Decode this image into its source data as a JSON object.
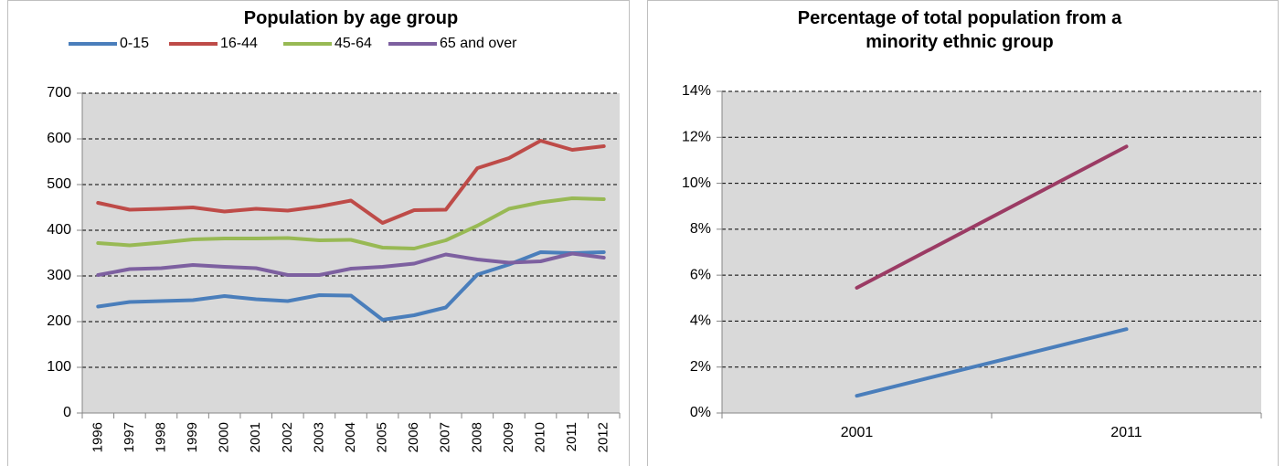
{
  "chart_data": [
    {
      "type": "line",
      "title": "Population by age group",
      "categories": [
        "1996",
        "1997",
        "1998",
        "1999",
        "2000",
        "2001",
        "2002",
        "2003",
        "2004",
        "2005",
        "2006",
        "2007",
        "2008",
        "2009",
        "2010",
        "2011",
        "2012"
      ],
      "series": [
        {
          "name": "0-15",
          "color": "#4a7ebb",
          "values": [
            233,
            243,
            245,
            247,
            256,
            249,
            245,
            258,
            257,
            204,
            214,
            231,
            303,
            325,
            352,
            350,
            352
          ]
        },
        {
          "name": "16-44",
          "color": "#be4b48",
          "values": [
            460,
            445,
            447,
            450,
            441,
            447,
            443,
            452,
            465,
            416,
            444,
            445,
            536,
            558,
            596,
            576,
            584
          ]
        },
        {
          "name": "45-64",
          "color": "#98b954",
          "values": [
            372,
            367,
            373,
            380,
            382,
            382,
            383,
            378,
            379,
            362,
            360,
            378,
            410,
            447,
            461,
            470,
            468
          ]
        },
        {
          "name": "65 and over",
          "color": "#7d60a0",
          "values": [
            302,
            315,
            317,
            324,
            320,
            317,
            302,
            302,
            316,
            320,
            327,
            347,
            336,
            329,
            332,
            349,
            340
          ]
        }
      ],
      "ylim": [
        0,
        700
      ],
      "yticks": [
        0,
        100,
        200,
        300,
        400,
        500,
        600,
        700
      ],
      "grid": true,
      "legend": "top"
    },
    {
      "type": "line",
      "title": "Percentage of total population from a minority ethnic group",
      "categories": [
        "2001",
        "2011"
      ],
      "series": [
        {
          "color": "#4a7ebb",
          "values": [
            0.75,
            3.65
          ]
        },
        {
          "color": "#9b3b64",
          "values": [
            5.45,
            11.6
          ]
        }
      ],
      "ylim": [
        0,
        14
      ],
      "yticks": [
        {
          "value": 0,
          "label": "0%"
        },
        {
          "value": 2,
          "label": "2%"
        },
        {
          "value": 4,
          "label": "4%"
        },
        {
          "value": 6,
          "label": "6%"
        },
        {
          "value": 8,
          "label": "8%"
        },
        {
          "value": 10,
          "label": "10%"
        },
        {
          "value": 12,
          "label": "12%"
        },
        {
          "value": 14,
          "label": "14%"
        }
      ],
      "grid": true
    }
  ]
}
